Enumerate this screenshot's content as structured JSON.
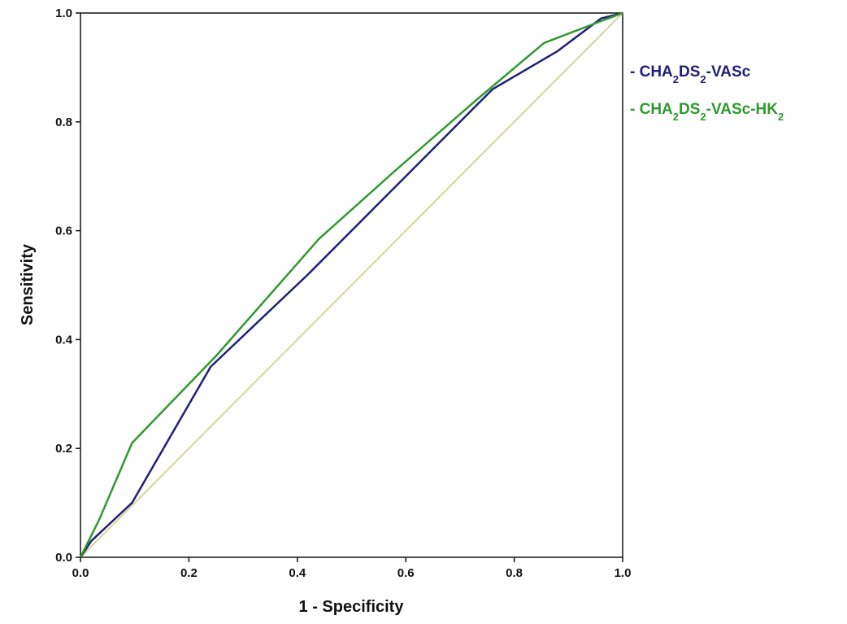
{
  "chart_data": {
    "type": "line",
    "title": "",
    "xlabel": "1 - Specificity",
    "ylabel": "Sensitivity",
    "xlim": [
      0,
      1
    ],
    "ylim": [
      0,
      1
    ],
    "x_ticks": [
      "0.0",
      "0.2",
      "0.4",
      "0.6",
      "0.8",
      "1.0"
    ],
    "y_ticks": [
      "0.0",
      "0.2",
      "0.4",
      "0.6",
      "0.8",
      "1.0"
    ],
    "grid": false,
    "legend_position": "right",
    "series": [
      {
        "name": "CHA2DS2-VASc",
        "legend": {
          "dash": "- ",
          "parts": [
            {
              "t": "CHA"
            },
            {
              "t": "2",
              "sub": true
            },
            {
              "t": "DS"
            },
            {
              "t": "2",
              "sub": true
            },
            {
              "t": "-VASc"
            }
          ]
        },
        "color": "#1f1f7a",
        "points": [
          [
            0,
            0
          ],
          [
            0.02,
            0.03
          ],
          [
            0.095,
            0.1
          ],
          [
            0.24,
            0.35
          ],
          [
            0.42,
            0.52
          ],
          [
            0.52,
            0.62
          ],
          [
            0.76,
            0.86
          ],
          [
            0.88,
            0.93
          ],
          [
            0.96,
            0.99
          ],
          [
            1.0,
            1.0
          ]
        ]
      },
      {
        "name": "CHA2DS2-VASc-HK2",
        "legend": {
          "dash": "- ",
          "parts": [
            {
              "t": "CHA"
            },
            {
              "t": "2",
              "sub": true
            },
            {
              "t": "DS"
            },
            {
              "t": "2",
              "sub": true
            },
            {
              "t": "-VASc-HK"
            },
            {
              "t": "2",
              "sub": true
            }
          ]
        },
        "color": "#2e9a2e",
        "points": [
          [
            0,
            0
          ],
          [
            0.035,
            0.07
          ],
          [
            0.095,
            0.21
          ],
          [
            0.25,
            0.37
          ],
          [
            0.44,
            0.585
          ],
          [
            0.58,
            0.71
          ],
          [
            0.73,
            0.84
          ],
          [
            0.855,
            0.945
          ],
          [
            0.96,
            0.985
          ],
          [
            1.0,
            1.0
          ]
        ]
      },
      {
        "name": "",
        "color": "#d8d49a",
        "points": [
          [
            0,
            0
          ],
          [
            1,
            1
          ]
        ]
      }
    ]
  }
}
